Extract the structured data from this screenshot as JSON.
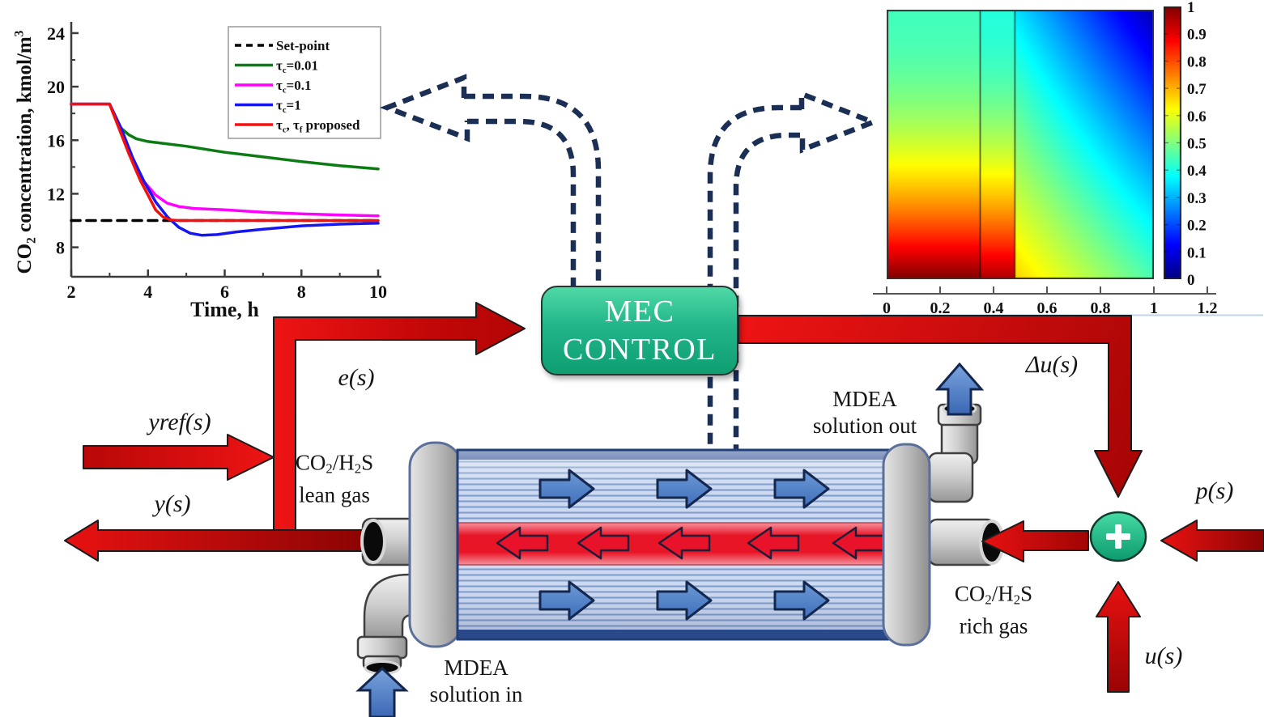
{
  "diagram": {
    "controller": {
      "line1": "MEC",
      "line2": "CONTROL"
    },
    "signals": {
      "yref": "yref(s)",
      "y": "y(s)",
      "e": "e(s)",
      "delta_u": "Δu(s)",
      "p": "p(s)",
      "u": "u(s)",
      "sum": "+"
    },
    "equipment": {
      "lean_gas_line1_parts": [
        [
          "n",
          "CO"
        ],
        [
          "sub",
          "2"
        ],
        [
          "n",
          "/H"
        ],
        [
          "sub",
          "2"
        ],
        [
          "n",
          "S"
        ]
      ],
      "lean_gas_line2": "lean gas",
      "rich_gas_line1_parts": [
        [
          "n",
          "CO"
        ],
        [
          "sub",
          "2"
        ],
        [
          "n",
          "/H"
        ],
        [
          "sub",
          "2"
        ],
        [
          "n",
          "S"
        ]
      ],
      "rich_gas_line2": "rich gas",
      "mdea_in_line1": "MDEA",
      "mdea_in_line2": "solution in",
      "mdea_out_line1": "MDEA",
      "mdea_out_line2": "solution out"
    },
    "colors": {
      "flow_red_bright": "#ee1414",
      "flow_red_dark": "#9d0404",
      "dash_navy": "#1b2f55",
      "controller_green_top": "#4fd9a6",
      "controller_green_bottom": "#0e9e72",
      "solvent_arrow_blue": "#4f80cb",
      "shell_blue": "#cdd9f0",
      "gas_band_red": "#e81527"
    }
  },
  "chart_data": [
    {
      "type": "line",
      "title": "",
      "xlabel": "Time, h",
      "ylabel_parts": [
        [
          "n",
          "CO"
        ],
        [
          "sub",
          "2"
        ],
        [
          "n",
          " concentration, kmol/m"
        ],
        [
          "sup",
          "3"
        ]
      ],
      "xlim": [
        2,
        10
      ],
      "ylim": [
        5.8,
        24.6
      ],
      "xticks": [
        2,
        4,
        6,
        8,
        10
      ],
      "yticks": [
        8,
        12,
        16,
        20,
        24
      ],
      "xminor": [
        3,
        5,
        7,
        9
      ],
      "yminor": [
        10,
        14,
        18,
        22
      ],
      "grid": false,
      "legend_position": "upper right",
      "series": [
        {
          "name_parts": [
            [
              "n",
              "Set-point"
            ]
          ],
          "color": "#000000",
          "dash": [
            11,
            8
          ],
          "width": 3.5,
          "points": [
            [
              2,
              10
            ],
            [
              10,
              10
            ]
          ]
        },
        {
          "name_parts": [
            [
              "n",
              "τ"
            ],
            [
              "sub",
              "c"
            ],
            [
              "n",
              "=0.01"
            ]
          ],
          "color": "#0b7b12",
          "width": 3.5,
          "points": [
            [
              2,
              18.7
            ],
            [
              3,
              18.7
            ],
            [
              3.15,
              17.6
            ],
            [
              3.3,
              16.9
            ],
            [
              3.5,
              16.4
            ],
            [
              3.7,
              16.1
            ],
            [
              4,
              15.9
            ],
            [
              4.3,
              15.8
            ],
            [
              5,
              15.55
            ],
            [
              6,
              15.1
            ],
            [
              7,
              14.75
            ],
            [
              8,
              14.4
            ],
            [
              9,
              14.1
            ],
            [
              10,
              13.85
            ]
          ]
        },
        {
          "name_parts": [
            [
              "n",
              "τ"
            ],
            [
              "sub",
              "c"
            ],
            [
              "n",
              "=0.1"
            ]
          ],
          "color": "#ff00ff",
          "width": 3.5,
          "points": [
            [
              2,
              18.7
            ],
            [
              3,
              18.7
            ],
            [
              3.3,
              16.8
            ],
            [
              3.6,
              14.6
            ],
            [
              3.9,
              12.9
            ],
            [
              4.2,
              11.9
            ],
            [
              4.5,
              11.3
            ],
            [
              4.8,
              11.05
            ],
            [
              5.2,
              10.9
            ],
            [
              6,
              10.8
            ],
            [
              7,
              10.62
            ],
            [
              8,
              10.5
            ],
            [
              9,
              10.42
            ],
            [
              10,
              10.35
            ]
          ]
        },
        {
          "name_parts": [
            [
              "n",
              "τ"
            ],
            [
              "sub",
              "c"
            ],
            [
              "n",
              "=1"
            ]
          ],
          "color": "#1616f0",
          "width": 3.5,
          "points": [
            [
              2,
              18.7
            ],
            [
              3,
              18.7
            ],
            [
              3.3,
              16.9
            ],
            [
              3.6,
              14.7
            ],
            [
              3.9,
              12.9
            ],
            [
              4.2,
              11.4
            ],
            [
              4.5,
              10.3
            ],
            [
              4.8,
              9.5
            ],
            [
              5.1,
              9.05
            ],
            [
              5.4,
              8.9
            ],
            [
              5.8,
              8.95
            ],
            [
              6.3,
              9.15
            ],
            [
              7,
              9.35
            ],
            [
              8,
              9.6
            ],
            [
              9,
              9.73
            ],
            [
              10,
              9.8
            ]
          ]
        },
        {
          "name_parts": [
            [
              "n",
              "τ"
            ],
            [
              "sub",
              "c"
            ],
            [
              "n",
              ", τ"
            ],
            [
              "sub",
              "f"
            ],
            [
              "n",
              " proposed"
            ]
          ],
          "color": "#f50f0f",
          "width": 3.5,
          "points": [
            [
              2,
              18.7
            ],
            [
              3,
              18.7
            ],
            [
              3.2,
              17.2
            ],
            [
              3.5,
              15.0
            ],
            [
              3.8,
              13.0
            ],
            [
              4,
              11.9
            ],
            [
              4.2,
              10.8
            ],
            [
              4.4,
              10.25
            ],
            [
              4.6,
              10.04
            ],
            [
              4.8,
              10
            ],
            [
              10,
              10
            ]
          ]
        }
      ]
    },
    {
      "type": "heatmap",
      "xlabel": "",
      "ylabel": "",
      "xticks": [
        0,
        0.2,
        0.4,
        0.6,
        0.8,
        1,
        1.2
      ],
      "xlim": [
        0,
        1.2
      ],
      "plot_x_range": [
        0,
        1
      ],
      "colormap": "jet",
      "colorbar": {
        "min": 0,
        "max": 1,
        "ticks": [
          0,
          0.1,
          0.2,
          0.3,
          0.4,
          0.5,
          0.6,
          0.7,
          0.8,
          0.9,
          1
        ],
        "position": "right"
      },
      "region_boundaries_x": [
        0.35,
        0.48
      ],
      "field_regions": [
        {
          "type": "vertical-gradient",
          "x_range": [
            0,
            0.35
          ],
          "value_top": 0.44,
          "value_bottom": 1.0,
          "power": 2.0
        },
        {
          "type": "vertical-gradient",
          "x_range": [
            0.35,
            0.48
          ],
          "value_top": 0.41,
          "value_bottom": 0.96,
          "power": 1.9
        },
        {
          "type": "corner-gradient",
          "x_range": [
            0.48,
            1.0
          ],
          "base": 0.05,
          "y_coef": 0.4,
          "left_coef": 0.3,
          "left_y_coef": -0.08,
          "note": "value ~0 at top-right corner, highest (~0.67) at bottom-left of region"
        }
      ],
      "grid": false
    }
  ]
}
